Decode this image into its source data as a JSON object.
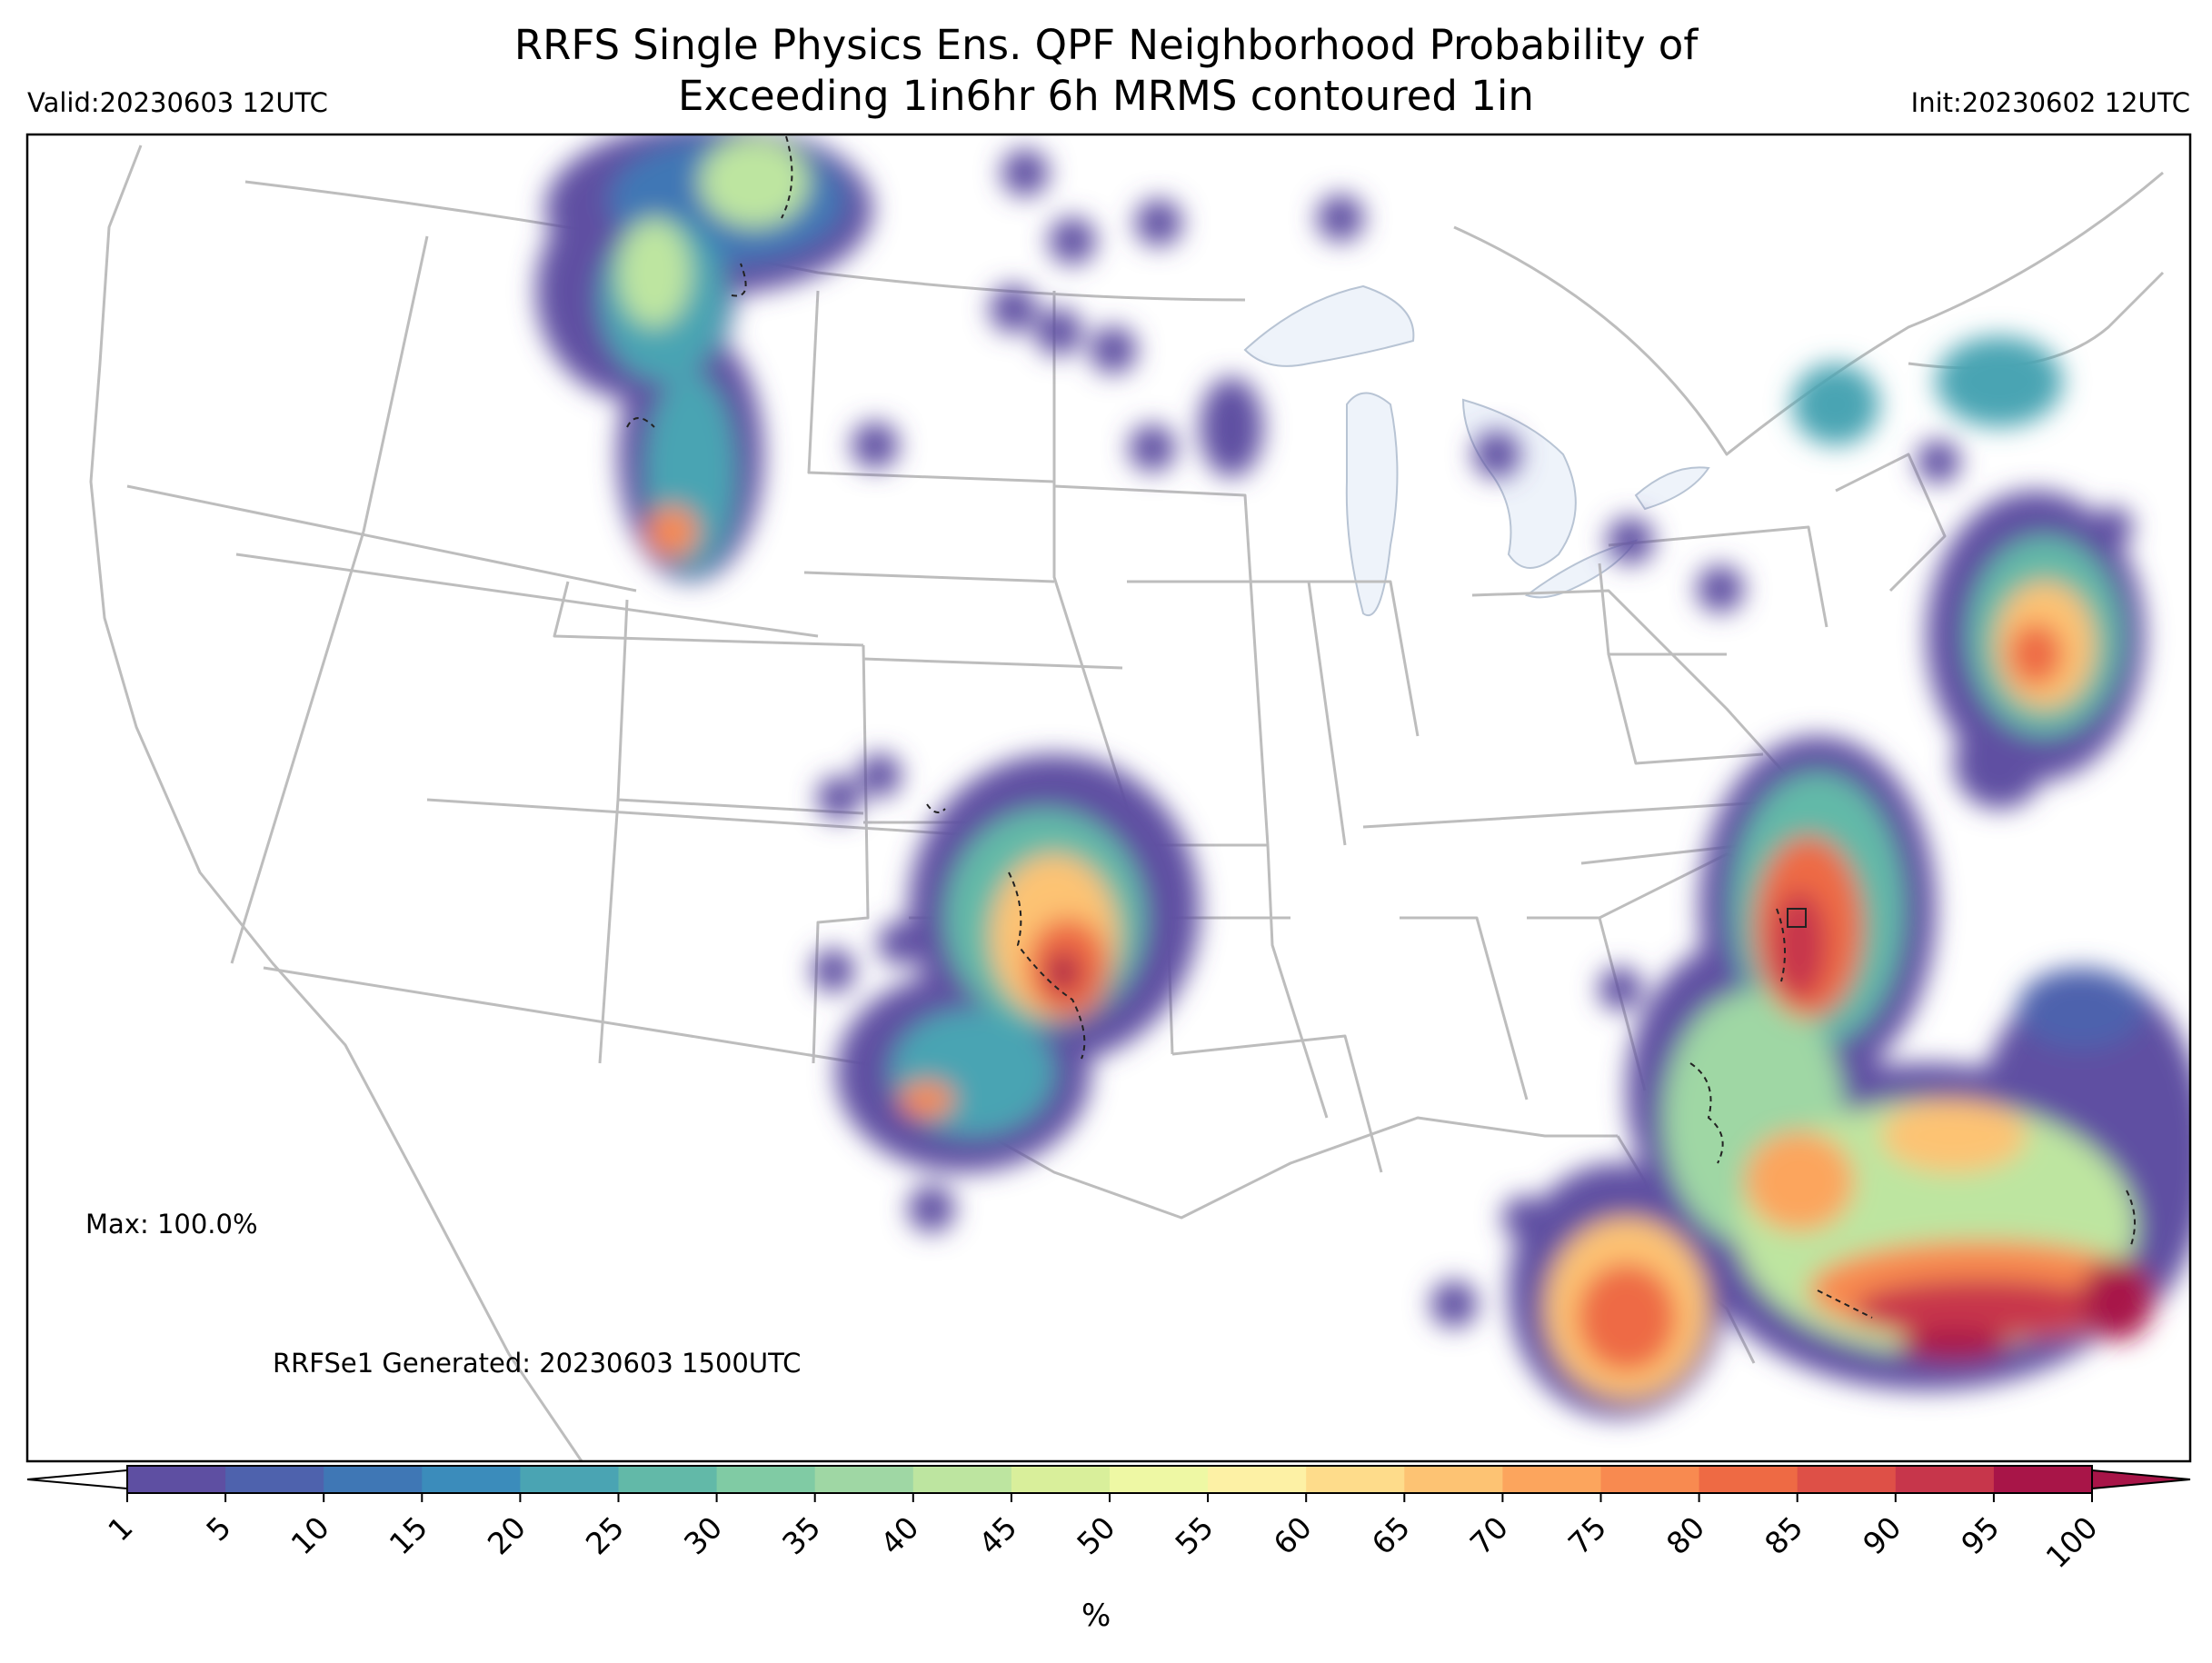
{
  "title_line1": "RRFS Single Physics Ens. QPF Neighborhood Probability of",
  "title_line2": "Exceeding 1in6hr 6h MRMS contoured 1in",
  "valid_label": "Valid:20230603 12UTC",
  "init_label": "Init:20230602 12UTC",
  "max_label": "Max: 100.0%",
  "generated_label": "RRFSe1 Generated: 20230603 1500UTC",
  "colorbar": {
    "unit": "%",
    "ticks": [
      "1",
      "5",
      "10",
      "15",
      "20",
      "25",
      "30",
      "35",
      "40",
      "45",
      "50",
      "55",
      "60",
      "65",
      "70",
      "75",
      "80",
      "85",
      "90",
      "95",
      "100"
    ],
    "colors": [
      "#5e4fa2",
      "#4e62ad",
      "#3f77b5",
      "#3b8cbb",
      "#4aa4b3",
      "#62b9a8",
      "#80cba4",
      "#9fd7a4",
      "#bde5a0",
      "#d9ef9b",
      "#eef8a4",
      "#fdf1a5",
      "#fedc8b",
      "#fdc373",
      "#fca55d",
      "#f88a50",
      "#ee6a44",
      "#de5047",
      "#c7364b",
      "#a81548"
    ]
  },
  "colors": {
    "state_lines": "#bdbdbd",
    "lakes": "#eef3fa",
    "contour": "#222222"
  }
}
